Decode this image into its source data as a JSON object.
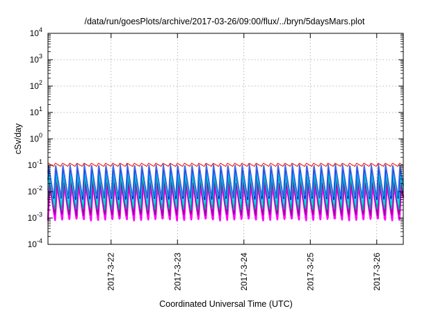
{
  "chart_data": {
    "type": "line",
    "title": "/data/run/goesPlots/archive/2017-03-26/09:00/flux/../bryn/5daysMars.plot",
    "xlabel": "Coordinated Universal Time (UTC)",
    "ylabel": "cSv/day",
    "y_scale": "log",
    "ylim_exponents": [
      -4,
      4
    ],
    "y_tick_exponents": [
      -4,
      -3,
      -2,
      -1,
      0,
      1,
      2,
      3,
      4
    ],
    "x_ticks": [
      "2017-3-22",
      "2017-3-23",
      "2017-3-24",
      "2017-3-25",
      "2017-3-26"
    ],
    "x_range_days": [
      21.05,
      26.4
    ],
    "grid": true,
    "legend": "none",
    "oscillation_period_days": 0.108,
    "series": [
      {
        "color": "#ff00ff",
        "min": 0.0008,
        "max": 0.02
      },
      {
        "color": "#990099",
        "min": 0.0012,
        "max": 0.025
      },
      {
        "color": "#00aaaa",
        "min": 0.002,
        "max": 0.04
      },
      {
        "color": "#00dddd",
        "min": 0.003,
        "max": 0.06
      },
      {
        "color": "#0000ff",
        "min": 0.005,
        "max": 0.09
      },
      {
        "color": "#4169e1",
        "min": 0.006,
        "max": 0.11
      },
      {
        "color": "#ff0000",
        "min": 0.09,
        "max": 0.12
      }
    ]
  }
}
